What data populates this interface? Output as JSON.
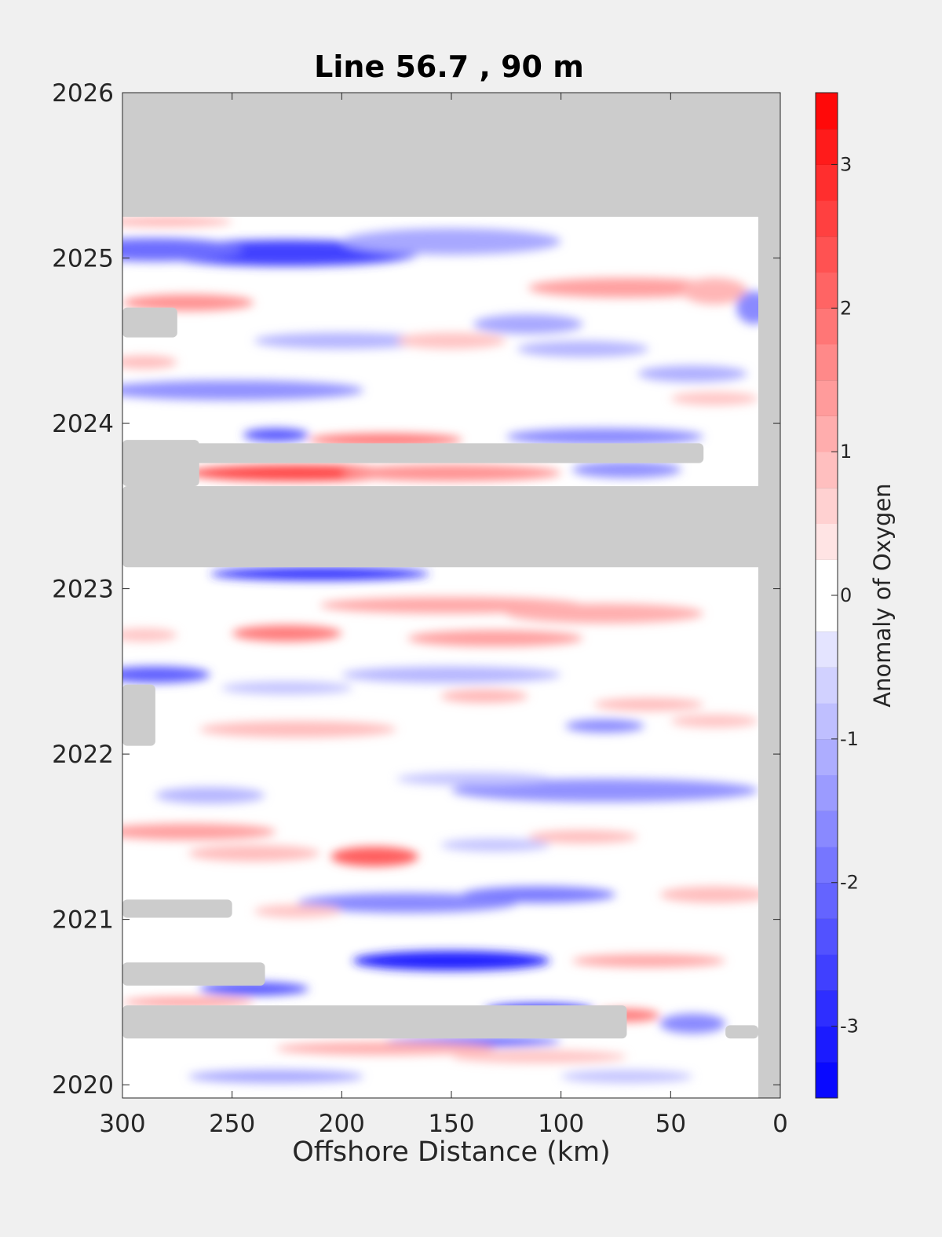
{
  "chart_data": {
    "type": "heatmap",
    "title": "Line 56.7 , 90 m",
    "xlabel": "Offshore Distance (km)",
    "ylabel": "",
    "colorbar_label": "Anomaly of Oxygen",
    "x_direction": "reversed",
    "xlim": [
      0,
      300
    ],
    "ylim": [
      2019.92,
      2026
    ],
    "xticks": [
      300,
      250,
      200,
      150,
      100,
      50,
      0
    ],
    "yticks": [
      2020,
      2021,
      2022,
      2023,
      2024,
      2025,
      2026
    ],
    "clim": [
      -3.5,
      3.5
    ],
    "cticks": [
      -3,
      -2,
      -1,
      0,
      1,
      2,
      3
    ],
    "colormap": {
      "negative": "#0000ff",
      "zero": "#ffffff",
      "positive": "#ff0000",
      "missing": "#cccccc"
    },
    "data_extent": {
      "x_min_km": 10,
      "y_max_year": 2025.25
    },
    "missing_regions": [
      {
        "x": [
          0,
          300
        ],
        "y": [
          2025.25,
          2026
        ]
      },
      {
        "x": [
          0,
          10
        ],
        "y": [
          2019.92,
          2025.25
        ]
      },
      {
        "x": [
          0,
          300
        ],
        "y": [
          2023.13,
          2023.62
        ]
      },
      {
        "x": [
          265,
          300
        ],
        "y": [
          2023.62,
          2023.9
        ]
      },
      {
        "x": [
          35,
          300
        ],
        "y": [
          2023.76,
          2023.88
        ]
      },
      {
        "x": [
          275,
          300
        ],
        "y": [
          2024.52,
          2024.7
        ]
      },
      {
        "x": [
          285,
          300
        ],
        "y": [
          2022.05,
          2022.42
        ]
      },
      {
        "x": [
          250,
          300
        ],
        "y": [
          2021.01,
          2021.12
        ]
      },
      {
        "x": [
          235,
          300
        ],
        "y": [
          2020.6,
          2020.74
        ]
      },
      {
        "x": [
          70,
          300
        ],
        "y": [
          2020.28,
          2020.48
        ]
      },
      {
        "x": [
          10,
          25
        ],
        "y": [
          2020.28,
          2020.36
        ]
      }
    ],
    "anomaly_features": [
      {
        "x": 225,
        "y": 2025.03,
        "value": -2.6,
        "rx": 60,
        "ry": 0.08
      },
      {
        "x": 285,
        "y": 2025.05,
        "value": -2.0,
        "rx": 40,
        "ry": 0.07
      },
      {
        "x": 150,
        "y": 2025.1,
        "value": -1.2,
        "rx": 50,
        "ry": 0.08
      },
      {
        "x": 280,
        "y": 2025.22,
        "value": 1.0,
        "rx": 30,
        "ry": 0.03
      },
      {
        "x": 270,
        "y": 2024.73,
        "value": 1.5,
        "rx": 30,
        "ry": 0.05
      },
      {
        "x": 70,
        "y": 2024.82,
        "value": 1.3,
        "rx": 45,
        "ry": 0.06
      },
      {
        "x": 30,
        "y": 2024.8,
        "value": 1.0,
        "rx": 15,
        "ry": 0.08
      },
      {
        "x": 12,
        "y": 2024.7,
        "value": -1.6,
        "rx": 8,
        "ry": 0.1
      },
      {
        "x": 115,
        "y": 2024.6,
        "value": -1.2,
        "rx": 25,
        "ry": 0.06
      },
      {
        "x": 200,
        "y": 2024.5,
        "value": -1.0,
        "rx": 40,
        "ry": 0.05
      },
      {
        "x": 150,
        "y": 2024.5,
        "value": 0.8,
        "rx": 25,
        "ry": 0.05
      },
      {
        "x": 250,
        "y": 2024.2,
        "value": -1.5,
        "rx": 60,
        "ry": 0.06
      },
      {
        "x": 90,
        "y": 2024.45,
        "value": -1.0,
        "rx": 30,
        "ry": 0.05
      },
      {
        "x": 40,
        "y": 2024.3,
        "value": -1.1,
        "rx": 25,
        "ry": 0.05
      },
      {
        "x": 290,
        "y": 2024.37,
        "value": 0.9,
        "rx": 15,
        "ry": 0.04
      },
      {
        "x": 30,
        "y": 2024.15,
        "value": 0.8,
        "rx": 20,
        "ry": 0.04
      },
      {
        "x": 230,
        "y": 2023.93,
        "value": -2.3,
        "rx": 15,
        "ry": 0.04
      },
      {
        "x": 180,
        "y": 2023.9,
        "value": 1.8,
        "rx": 35,
        "ry": 0.04
      },
      {
        "x": 80,
        "y": 2023.92,
        "value": -1.6,
        "rx": 45,
        "ry": 0.05
      },
      {
        "x": 70,
        "y": 2023.72,
        "value": -1.5,
        "rx": 25,
        "ry": 0.05
      },
      {
        "x": 220,
        "y": 2023.7,
        "value": 2.5,
        "rx": 50,
        "ry": 0.05
      },
      {
        "x": 150,
        "y": 2023.7,
        "value": 1.5,
        "rx": 50,
        "ry": 0.05
      },
      {
        "x": 210,
        "y": 2023.09,
        "value": -2.8,
        "rx": 50,
        "ry": 0.04
      },
      {
        "x": 150,
        "y": 2022.9,
        "value": 1.2,
        "rx": 60,
        "ry": 0.05
      },
      {
        "x": 80,
        "y": 2022.85,
        "value": 1.1,
        "rx": 45,
        "ry": 0.06
      },
      {
        "x": 225,
        "y": 2022.73,
        "value": 1.8,
        "rx": 25,
        "ry": 0.05
      },
      {
        "x": 130,
        "y": 2022.7,
        "value": 1.3,
        "rx": 40,
        "ry": 0.05
      },
      {
        "x": 290,
        "y": 2022.72,
        "value": 0.8,
        "rx": 15,
        "ry": 0.04
      },
      {
        "x": 285,
        "y": 2022.48,
        "value": -2.2,
        "rx": 25,
        "ry": 0.05
      },
      {
        "x": 150,
        "y": 2022.48,
        "value": -1.0,
        "rx": 50,
        "ry": 0.05
      },
      {
        "x": 225,
        "y": 2022.4,
        "value": -0.8,
        "rx": 30,
        "ry": 0.04
      },
      {
        "x": 135,
        "y": 2022.35,
        "value": 1.0,
        "rx": 20,
        "ry": 0.04
      },
      {
        "x": 60,
        "y": 2022.3,
        "value": 0.9,
        "rx": 25,
        "ry": 0.04
      },
      {
        "x": 220,
        "y": 2022.15,
        "value": 0.9,
        "rx": 45,
        "ry": 0.05
      },
      {
        "x": 80,
        "y": 2022.17,
        "value": -1.6,
        "rx": 18,
        "ry": 0.04
      },
      {
        "x": 30,
        "y": 2022.2,
        "value": 0.8,
        "rx": 20,
        "ry": 0.04
      },
      {
        "x": 80,
        "y": 2021.78,
        "value": -1.5,
        "rx": 70,
        "ry": 0.07
      },
      {
        "x": 260,
        "y": 2021.75,
        "value": -1.0,
        "rx": 25,
        "ry": 0.05
      },
      {
        "x": 140,
        "y": 2021.85,
        "value": -0.8,
        "rx": 35,
        "ry": 0.04
      },
      {
        "x": 270,
        "y": 2021.53,
        "value": 1.3,
        "rx": 40,
        "ry": 0.05
      },
      {
        "x": 185,
        "y": 2021.38,
        "value": 2.2,
        "rx": 20,
        "ry": 0.06
      },
      {
        "x": 240,
        "y": 2021.4,
        "value": 0.9,
        "rx": 30,
        "ry": 0.05
      },
      {
        "x": 90,
        "y": 2021.5,
        "value": 0.9,
        "rx": 25,
        "ry": 0.04
      },
      {
        "x": 130,
        "y": 2021.45,
        "value": -0.8,
        "rx": 25,
        "ry": 0.04
      },
      {
        "x": 170,
        "y": 2021.1,
        "value": -1.6,
        "rx": 50,
        "ry": 0.06
      },
      {
        "x": 110,
        "y": 2021.15,
        "value": -1.8,
        "rx": 35,
        "ry": 0.05
      },
      {
        "x": 30,
        "y": 2021.15,
        "value": 0.9,
        "rx": 25,
        "ry": 0.05
      },
      {
        "x": 220,
        "y": 2021.05,
        "value": 0.8,
        "rx": 20,
        "ry": 0.04
      },
      {
        "x": 150,
        "y": 2020.75,
        "value": -3.0,
        "rx": 45,
        "ry": 0.06
      },
      {
        "x": 60,
        "y": 2020.75,
        "value": 1.2,
        "rx": 35,
        "ry": 0.04
      },
      {
        "x": 240,
        "y": 2020.58,
        "value": -2.3,
        "rx": 25,
        "ry": 0.04
      },
      {
        "x": 270,
        "y": 2020.5,
        "value": 1.3,
        "rx": 30,
        "ry": 0.03
      },
      {
        "x": 110,
        "y": 2020.45,
        "value": -2.8,
        "rx": 25,
        "ry": 0.04
      },
      {
        "x": 70,
        "y": 2020.42,
        "value": 1.8,
        "rx": 15,
        "ry": 0.04
      },
      {
        "x": 40,
        "y": 2020.37,
        "value": -1.6,
        "rx": 15,
        "ry": 0.06
      },
      {
        "x": 140,
        "y": 2020.26,
        "value": -2.2,
        "rx": 40,
        "ry": 0.03
      },
      {
        "x": 180,
        "y": 2020.22,
        "value": 1.1,
        "rx": 50,
        "ry": 0.04
      },
      {
        "x": 110,
        "y": 2020.17,
        "value": 0.8,
        "rx": 40,
        "ry": 0.04
      },
      {
        "x": 230,
        "y": 2020.05,
        "value": -1.2,
        "rx": 40,
        "ry": 0.04
      },
      {
        "x": 70,
        "y": 2020.05,
        "value": -0.8,
        "rx": 30,
        "ry": 0.04
      }
    ]
  }
}
